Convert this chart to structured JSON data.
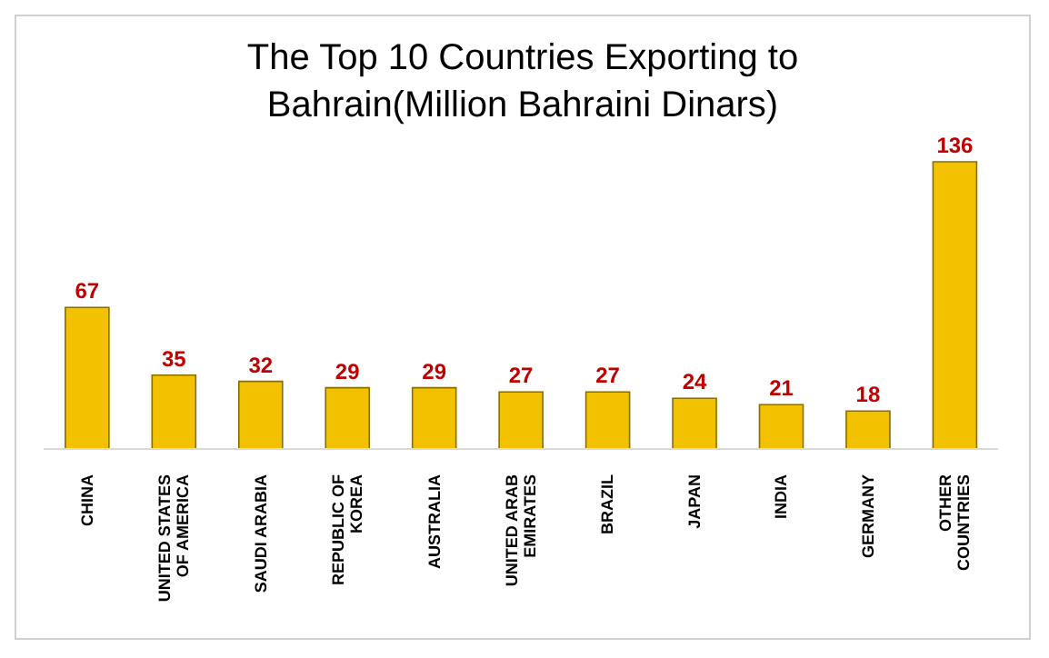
{
  "chart_data": {
    "type": "bar",
    "title": "The Top 10 Countries Exporting to Bahrain(Million Bahraini Dinars)",
    "categories": [
      "CHINA",
      "UNITED STATES OF AMERICA",
      "SAUDI ARABIA",
      "REPUBLIC OF KOREA",
      "AUSTRALIA",
      "UNITED ARAB EMIRATES",
      "BRAZIL",
      "JAPAN",
      "INDIA",
      "GERMANY",
      "OTHER COUNTRIES"
    ],
    "values": [
      67,
      35,
      32,
      29,
      29,
      27,
      27,
      24,
      21,
      18,
      136
    ],
    "color": "#f2c200",
    "data_labels": true
  }
}
